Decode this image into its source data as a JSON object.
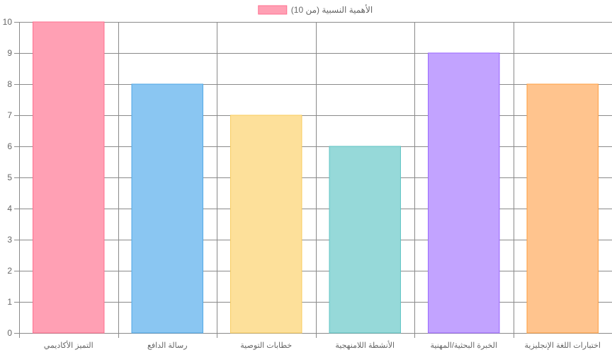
{
  "chart_data": {
    "type": "bar",
    "categories": [
      "التميز الأكاديمي",
      "رسالة الدافع",
      "خطابات التوصية",
      "الأنشطة اللامنهجية",
      "الخبرة البحثية/المهنية",
      "اختبارات اللغة الإنجليزية"
    ],
    "series": [
      {
        "name": "الأهمية النسبية (من 10)",
        "values": [
          10,
          8,
          7,
          6,
          9,
          8
        ]
      }
    ],
    "colors": {
      "fill": [
        "#ffa0b4",
        "#8ac6f2",
        "#fde09a",
        "#96d9d9",
        "#c2a3ff",
        "#ffc48e"
      ],
      "stroke": [
        "#ff6f8f",
        "#4fa7e6",
        "#f8cc5e",
        "#5fc4c4",
        "#9966ff",
        "#ff9f40"
      ],
      "grid": "#8a8a8a",
      "text": "#666666"
    },
    "ylim": [
      0,
      10
    ],
    "yticks": [
      0,
      1,
      2,
      3,
      4,
      5,
      6,
      7,
      8,
      9,
      10
    ],
    "grid": true,
    "legend_position": "top"
  }
}
